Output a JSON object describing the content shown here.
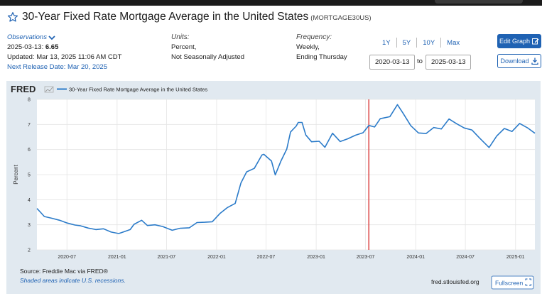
{
  "header": {
    "title": "30-Year Fixed Rate Mortgage Average in the United States",
    "series_id": "(MORTGAGE30US)"
  },
  "observations": {
    "label": "Observations",
    "date": "2025-03-13:",
    "value": "6.65",
    "updated": "Updated: Mar 13, 2025 11:06 AM CDT",
    "next_release": "Next Release Date: Mar 20, 2025"
  },
  "units": {
    "label": "Units:",
    "line1": "Percent,",
    "line2": "Not Seasonally Adjusted"
  },
  "frequency": {
    "label": "Frequency:",
    "line1": "Weekly,",
    "line2": "Ending Thursday"
  },
  "range_buttons": [
    "1Y",
    "5Y",
    "10Y",
    "Max"
  ],
  "date_range": {
    "start": "2020-03-13",
    "to": "to",
    "end": "2025-03-13"
  },
  "buttons": {
    "edit": "Edit Graph",
    "download": "Download",
    "fullscreen": "Fullscreen"
  },
  "footer": {
    "source": "Source: Freddie Mac via FRED®",
    "recession_note": "Shaded areas indicate U.S. recessions.",
    "site": "fred.stlouisfed.org"
  },
  "colors": {
    "line": "#2b7bc9",
    "marker": "#d93636",
    "plot_bg": "#ffffff",
    "frame_bg": "#e1e9f0",
    "brand": "#1f62b3"
  },
  "chart_data": {
    "type": "line",
    "logo": "FRED",
    "legend": "30-Year Fixed Rate Mortgage Average in the United States",
    "ylabel": "Percent",
    "ylim": [
      2,
      8
    ],
    "yticks": [
      2,
      3,
      4,
      5,
      6,
      7,
      8
    ],
    "xlim": [
      "2020-03-13",
      "2025-03-13"
    ],
    "xticks": [
      "2020-07",
      "2021-01",
      "2021-07",
      "2022-01",
      "2022-07",
      "2023-01",
      "2023-07",
      "2024-01",
      "2024-07",
      "2025-01"
    ],
    "vertical_marker": "2023-07-13",
    "grid": true,
    "series": [
      {
        "name": "30-Year Fixed Rate Mortgage Average in the United States",
        "points": [
          [
            "2020-03-13",
            3.65
          ],
          [
            "2020-03-26",
            3.5
          ],
          [
            "2020-04-09",
            3.33
          ],
          [
            "2020-05-07",
            3.26
          ],
          [
            "2020-06-04",
            3.18
          ],
          [
            "2020-07-02",
            3.07
          ],
          [
            "2020-07-30",
            2.99
          ],
          [
            "2020-08-20",
            2.96
          ],
          [
            "2020-09-17",
            2.87
          ],
          [
            "2020-10-15",
            2.81
          ],
          [
            "2020-11-12",
            2.84
          ],
          [
            "2020-12-10",
            2.71
          ],
          [
            "2021-01-07",
            2.65
          ],
          [
            "2021-01-28",
            2.73
          ],
          [
            "2021-02-18",
            2.81
          ],
          [
            "2021-03-04",
            3.02
          ],
          [
            "2021-04-01",
            3.18
          ],
          [
            "2021-04-22",
            2.97
          ],
          [
            "2021-05-20",
            3.0
          ],
          [
            "2021-06-17",
            2.93
          ],
          [
            "2021-07-22",
            2.78
          ],
          [
            "2021-08-19",
            2.86
          ],
          [
            "2021-09-23",
            2.88
          ],
          [
            "2021-10-21",
            3.09
          ],
          [
            "2021-11-18",
            3.1
          ],
          [
            "2021-12-16",
            3.12
          ],
          [
            "2022-01-13",
            3.45
          ],
          [
            "2022-02-10",
            3.69
          ],
          [
            "2022-03-10",
            3.85
          ],
          [
            "2022-03-31",
            4.67
          ],
          [
            "2022-04-21",
            5.11
          ],
          [
            "2022-05-19",
            5.25
          ],
          [
            "2022-06-16",
            5.78
          ],
          [
            "2022-06-23",
            5.81
          ],
          [
            "2022-07-21",
            5.54
          ],
          [
            "2022-08-04",
            4.99
          ],
          [
            "2022-08-25",
            5.55
          ],
          [
            "2022-09-15",
            6.02
          ],
          [
            "2022-09-29",
            6.7
          ],
          [
            "2022-10-20",
            6.94
          ],
          [
            "2022-10-27",
            7.08
          ],
          [
            "2022-11-10",
            7.08
          ],
          [
            "2022-11-24",
            6.58
          ],
          [
            "2022-12-15",
            6.31
          ],
          [
            "2023-01-12",
            6.33
          ],
          [
            "2023-02-02",
            6.09
          ],
          [
            "2023-03-02",
            6.65
          ],
          [
            "2023-03-30",
            6.32
          ],
          [
            "2023-04-27",
            6.43
          ],
          [
            "2023-05-25",
            6.57
          ],
          [
            "2023-06-22",
            6.67
          ],
          [
            "2023-07-13",
            6.96
          ],
          [
            "2023-08-03",
            6.9
          ],
          [
            "2023-08-24",
            7.23
          ],
          [
            "2023-09-28",
            7.31
          ],
          [
            "2023-10-26",
            7.79
          ],
          [
            "2023-11-16",
            7.44
          ],
          [
            "2023-12-14",
            6.95
          ],
          [
            "2024-01-11",
            6.66
          ],
          [
            "2024-02-08",
            6.64
          ],
          [
            "2024-03-07",
            6.88
          ],
          [
            "2024-04-04",
            6.82
          ],
          [
            "2024-05-02",
            7.22
          ],
          [
            "2024-05-30",
            7.03
          ],
          [
            "2024-06-27",
            6.86
          ],
          [
            "2024-07-25",
            6.78
          ],
          [
            "2024-08-22",
            6.46
          ],
          [
            "2024-09-26",
            6.08
          ],
          [
            "2024-10-24",
            6.54
          ],
          [
            "2024-11-21",
            6.84
          ],
          [
            "2024-12-19",
            6.72
          ],
          [
            "2025-01-16",
            7.04
          ],
          [
            "2025-02-13",
            6.87
          ],
          [
            "2025-03-13",
            6.65
          ]
        ]
      }
    ]
  }
}
